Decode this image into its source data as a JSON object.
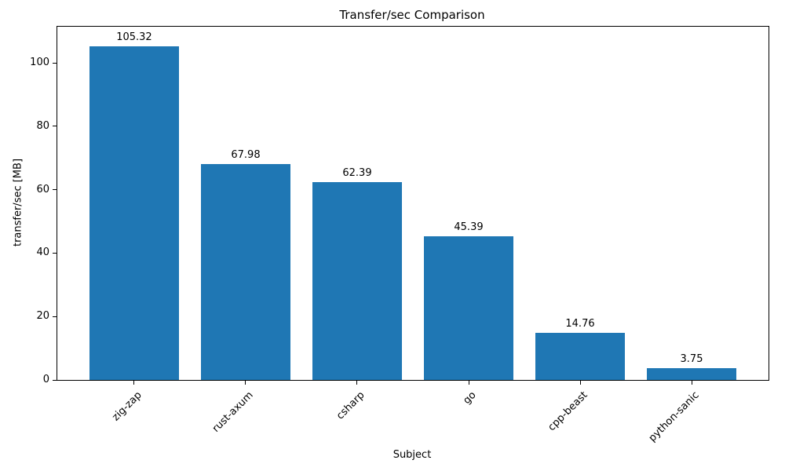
{
  "chart_data": {
    "type": "bar",
    "title": "Transfer/sec Comparison",
    "xlabel": "Subject",
    "ylabel": "transfer/sec [MB]",
    "categories": [
      "zig-zap",
      "rust-axum",
      "csharp",
      "go",
      "cpp-beast",
      "python-sanic"
    ],
    "values": [
      105.32,
      67.98,
      62.39,
      45.39,
      14.76,
      3.75
    ],
    "value_labels": [
      "105.32",
      "67.98",
      "62.39",
      "45.39",
      "14.76",
      "3.75"
    ],
    "yticks": [
      0,
      20,
      40,
      60,
      80,
      100
    ],
    "ytick_labels": [
      "0",
      "20",
      "40",
      "60",
      "80",
      "100"
    ],
    "ylim": [
      0,
      111.4
    ],
    "xlim": [
      -0.69,
      5.69
    ],
    "bar_width_units": 0.8,
    "bar_color": "#1f77b4",
    "text_color": "#000000",
    "frame_color": "#000000",
    "background_color": "#ffffff",
    "grid": false,
    "legend_position": "none",
    "xtick_rotation_deg": 45
  }
}
